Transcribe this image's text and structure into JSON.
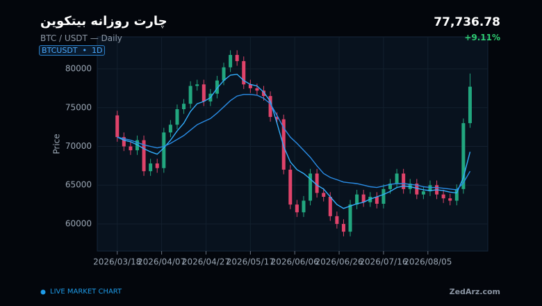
{
  "header": {
    "title": "چارت روزانه بیتکوین",
    "pair": "BTC / USDT — Daily",
    "badge": "BTCUSDT  •  1D",
    "price": "77,736.78",
    "change": "+9.11%"
  },
  "footer": {
    "live": "LIVE MARKET CHART",
    "brand": "ZedArz.com"
  },
  "chart_data": {
    "type": "candlestick",
    "y_label": "Price",
    "x": [
      "2026/03/18",
      "2026/03/21",
      "2026/03/24",
      "2026/03/27",
      "2026/03/30",
      "2026/04/02",
      "2026/04/05",
      "2026/04/08",
      "2026/04/11",
      "2026/04/14",
      "2026/04/17",
      "2026/04/20",
      "2026/04/23",
      "2026/04/26",
      "2026/04/29",
      "2026/05/02",
      "2026/05/05",
      "2026/05/08",
      "2026/05/11",
      "2026/05/14",
      "2026/05/17",
      "2026/05/20",
      "2026/05/23",
      "2026/05/26",
      "2026/05/29",
      "2026/06/01",
      "2026/06/04",
      "2026/06/07",
      "2026/06/10",
      "2026/06/13",
      "2026/06/16",
      "2026/06/19",
      "2026/06/22",
      "2026/06/25",
      "2026/06/28",
      "2026/07/01",
      "2026/07/04",
      "2026/07/07",
      "2026/07/10",
      "2026/07/13",
      "2026/07/16",
      "2026/07/19",
      "2026/07/22",
      "2026/07/25",
      "2026/07/28",
      "2026/07/31",
      "2026/08/03",
      "2026/08/06",
      "2026/08/09",
      "2026/08/12",
      "2026/08/15",
      "2026/08/18",
      "2026/08/21",
      "2026/08/24"
    ],
    "open": [
      74000,
      71200,
      70000,
      69500,
      70800,
      66800,
      67800,
      67200,
      71800,
      72800,
      74800,
      75500,
      77800,
      78000,
      75800,
      76800,
      78500,
      80200,
      81800,
      81000,
      78000,
      77500,
      77200,
      76500,
      73800,
      73500,
      67000,
      62500,
      61500,
      63000,
      66500,
      64000,
      63500,
      61000,
      60000,
      59000,
      62500,
      63800,
      62800,
      63500,
      62600,
      64500,
      65200,
      66500,
      64500,
      65200,
      63800,
      64200,
      65000,
      63800,
      63300,
      63000,
      64500,
      73000
    ],
    "high": [
      74600,
      71800,
      70600,
      71400,
      71400,
      68400,
      68400,
      72400,
      73400,
      75400,
      76100,
      78400,
      78600,
      78600,
      77400,
      79100,
      80800,
      82400,
      82400,
      81600,
      78600,
      78100,
      77800,
      77100,
      74400,
      74100,
      67600,
      63100,
      63600,
      67100,
      67100,
      64600,
      64100,
      61600,
      60600,
      63100,
      64400,
      64400,
      64100,
      64100,
      65100,
      65800,
      67100,
      67100,
      65800,
      65800,
      64800,
      65600,
      65600,
      64400,
      63900,
      65100,
      73600,
      79400
    ],
    "low": [
      70600,
      69400,
      68900,
      68900,
      66200,
      66200,
      66600,
      66600,
      71200,
      72200,
      74200,
      74900,
      77200,
      75200,
      75200,
      76200,
      77900,
      79600,
      80400,
      77400,
      76900,
      76600,
      75900,
      73200,
      72900,
      66400,
      61900,
      60900,
      60900,
      62400,
      63400,
      62900,
      60400,
      59400,
      58400,
      58400,
      61900,
      62200,
      62200,
      62000,
      62000,
      63900,
      64600,
      63900,
      63900,
      63200,
      63200,
      63600,
      63200,
      62700,
      62400,
      62400,
      63900,
      72400
    ],
    "close": [
      71200,
      70000,
      69500,
      70800,
      66800,
      67800,
      67200,
      71800,
      72800,
      74800,
      75500,
      77800,
      78000,
      75800,
      76800,
      78500,
      80200,
      81800,
      81000,
      78000,
      77500,
      77200,
      76500,
      73800,
      73500,
      67000,
      62500,
      61500,
      63000,
      66500,
      64000,
      63500,
      61000,
      60000,
      59000,
      62500,
      63800,
      62800,
      63500,
      62600,
      64500,
      65200,
      66500,
      64500,
      65200,
      63800,
      64200,
      65000,
      63800,
      63300,
      63000,
      64500,
      73000,
      77700
    ],
    "up_color": "#22a77f",
    "down_color": "#e0436a",
    "lines": [
      {
        "color": "#33b0ff",
        "values": [
          71200,
          70800,
          70600,
          70200,
          69700,
          69300,
          69000,
          69800,
          70800,
          72000,
          73000,
          74500,
          75500,
          75800,
          76300,
          77500,
          78500,
          79200,
          79300,
          78500,
          78000,
          77800,
          77000,
          75800,
          73000,
          70000,
          68000,
          67000,
          66500,
          65800,
          65000,
          64500,
          63500,
          62500,
          62000,
          62300,
          62600,
          62800,
          63200,
          63500,
          63800,
          64200,
          64700,
          64900,
          64800,
          64600,
          64400,
          64300,
          64400,
          64300,
          64100,
          64000,
          66000,
          69300
        ]
      },
      {
        "color": "#2a8ee8",
        "values": [
          71200,
          71000,
          70800,
          70500,
          70200,
          70000,
          69800,
          70000,
          70400,
          70900,
          71400,
          72100,
          72800,
          73200,
          73600,
          74300,
          75100,
          75900,
          76500,
          76700,
          76700,
          76600,
          76200,
          75500,
          74000,
          72400,
          71200,
          70400,
          69500,
          68600,
          67500,
          66500,
          66000,
          65700,
          65400,
          65300,
          65200,
          65000,
          64800,
          64700,
          64900,
          65100,
          65200,
          65200,
          65100,
          65000,
          64800,
          64700,
          64700,
          64600,
          64500,
          64400,
          65300,
          66800
        ]
      }
    ],
    "xlim": [
      "2026/03/09",
      "2026/09/01"
    ],
    "xticks": [
      "2026/03/18",
      "2026/04/07",
      "2026/04/27",
      "2026/05/17",
      "2026/06/06",
      "2026/06/26",
      "2026/07/16",
      "2026/08/05"
    ],
    "ylim": [
      56500,
      84130
    ],
    "yticks": [
      60000,
      65000,
      70000,
      75000,
      80000
    ],
    "grid": true
  }
}
